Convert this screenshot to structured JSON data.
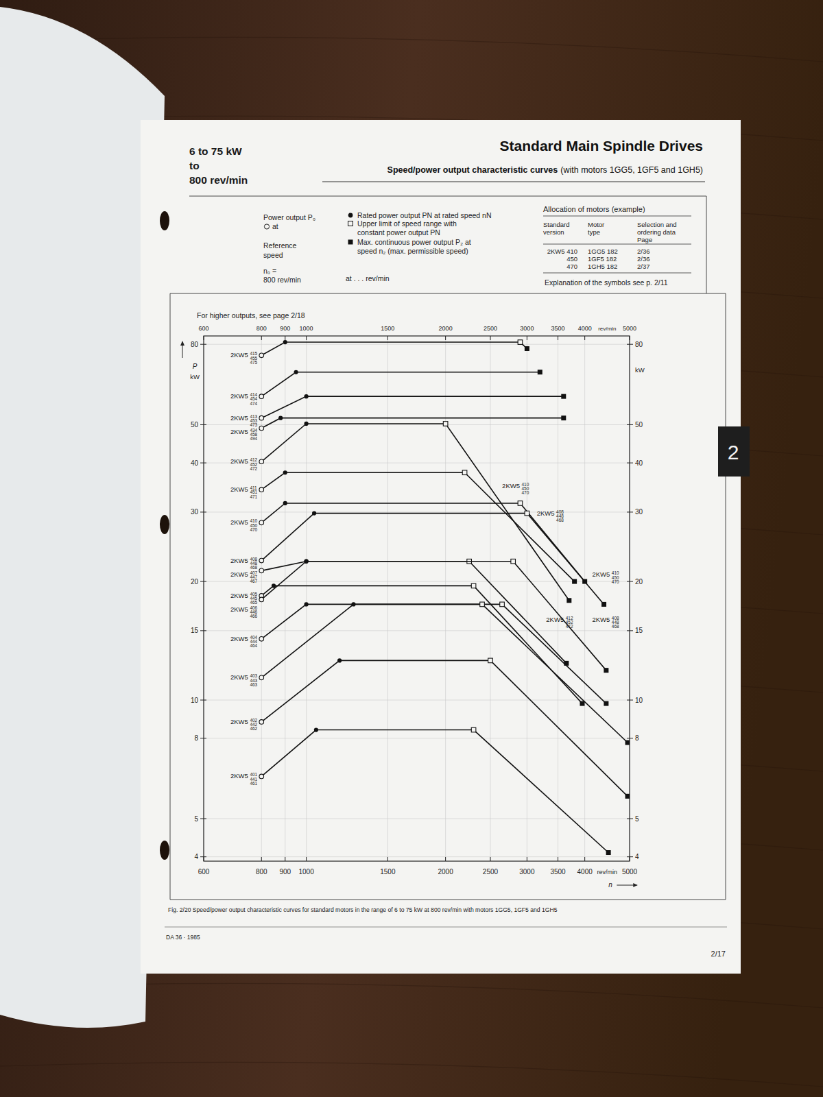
{
  "page": {
    "header_left": [
      "6 to 75 kW",
      "to",
      "800 rev/min"
    ],
    "header_title": "Standard Main Spindle Drives",
    "header_subtitle": "Speed/power output characteristic curves",
    "header_subtitle_note": "(with motors 1GG5, 1GF5 and 1GH5)",
    "legend": {
      "p0": [
        "Power output P₀",
        "at"
      ],
      "reference": [
        "Reference",
        "speed"
      ],
      "n0": [
        "n₀ =",
        "800 rev/min"
      ],
      "items": [
        [
          "Rated power output PN at rated speed nN"
        ],
        [
          "Upper limit of speed range with",
          "constant power output PN"
        ],
        [
          "Max. continuous power output P₂ at",
          "speed n₂ (max. permissible speed)"
        ]
      ],
      "at": "at . . . rev/min"
    },
    "allocation": {
      "title": "Allocation of motors (example)",
      "columns": [
        [
          "Standard",
          "version"
        ],
        [
          "Motor",
          "type"
        ],
        [
          "Selection and",
          "ordering data",
          "Page"
        ]
      ],
      "rows": [
        [
          "2KW5 410",
          "1GG5 182",
          "2/36"
        ],
        [
          "450",
          "1GF5 182",
          "2/36"
        ],
        [
          "470",
          "1GH5 182",
          "2/37"
        ]
      ],
      "note": "Explanation of the symbols see p. 2/11"
    },
    "caption": "Fig. 2/20  Speed/power output characteristic curves for standard motors in the range of 6 to 75 kW at 800 rev/min with motors 1GG5, 1GF5 and 1GH5",
    "footer_left": "DA 36 · 1985",
    "page_number": "2/17",
    "tab": "2"
  },
  "chart_data": {
    "type": "line",
    "title": "For higher outputs, see page 2/18",
    "x_label": "rev/min",
    "x_symbol": "n",
    "y_label": "kW",
    "y_symbol": "P",
    "log": true,
    "grid": true,
    "color": "#111111",
    "line_style": "solid",
    "xlim": [
      600,
      5000
    ],
    "xticks": [
      600,
      800,
      900,
      1000,
      1500,
      2000,
      2500,
      3000,
      3500,
      4000,
      5000
    ],
    "ylim": [
      3.9,
      84
    ],
    "yticks": [
      4,
      5,
      8,
      10,
      15,
      20,
      30,
      40,
      50,
      80
    ],
    "series": [
      {
        "name": "2KW5 415 455 475",
        "x": [
          800,
          900,
          2900,
          3000
        ],
        "values": [
          75,
          81,
          81,
          78
        ]
      },
      {
        "name": "2KW5 414 454 474",
        "x": [
          800,
          950,
          3200
        ],
        "values": [
          59,
          68,
          68
        ]
      },
      {
        "name": "2KW5 413 453 473",
        "x": [
          800,
          1000,
          3600
        ],
        "values": [
          52,
          59,
          59
        ]
      },
      {
        "name": "2KW5 434 458 494",
        "x": [
          800,
          880,
          3600
        ],
        "values": [
          49,
          52,
          52
        ]
      },
      {
        "name": "2KW5 412 452 472",
        "x": [
          800,
          1000,
          2000,
          3700
        ],
        "values": [
          40.3,
          50.3,
          50.3,
          17.9
        ]
      },
      {
        "name": "2KW5 411 451 471",
        "x": [
          800,
          900,
          2200,
          3800
        ],
        "values": [
          34.2,
          37.8,
          37.8,
          20
        ]
      },
      {
        "name": "2KW5 410 450 470",
        "x": [
          800,
          900,
          2900,
          4000
        ],
        "values": [
          28.2,
          31.6,
          31.6,
          20
        ]
      },
      {
        "name": "2KW5 408 448 468",
        "x": [
          800,
          1040,
          3000,
          4400
        ],
        "values": [
          22.6,
          29.8,
          29.8,
          17.5
        ]
      },
      {
        "name": "2KW5 407 447 467",
        "x": [
          800,
          1000,
          2250,
          3650
        ],
        "values": [
          21.3,
          22.5,
          22.5,
          12.4
        ]
      },
      {
        "name": "2KW5 405 445 465",
        "x": [
          800,
          850,
          2300,
          3950
        ],
        "values": [
          18.4,
          19.5,
          19.5,
          9.8
        ]
      },
      {
        "name": "2KW5 406 446 466",
        "x": [
          800,
          1000,
          2800,
          4450
        ],
        "values": [
          18,
          22.5,
          22.5,
          11.9
        ]
      },
      {
        "name": "2KW5 404 444 464",
        "x": [
          800,
          1000,
          2650,
          4450
        ],
        "values": [
          14.3,
          17.5,
          17.5,
          9.8
        ]
      },
      {
        "name": "2KW5 403 443 463",
        "x": [
          800,
          1265,
          2400,
          4950
        ],
        "values": [
          11.4,
          17.5,
          17.5,
          7.8
        ]
      },
      {
        "name": "2KW5 402 442 462",
        "x": [
          800,
          1180,
          2500,
          4950
        ],
        "values": [
          8.8,
          12.6,
          12.6,
          5.7
        ]
      },
      {
        "name": "2KW5 401 441 461",
        "x": [
          800,
          1050,
          2300,
          4500
        ],
        "values": [
          6.4,
          8.4,
          8.4,
          4.1
        ]
      }
    ],
    "annotations": [
      {
        "text": "2KW5 410 450 470",
        "x": 2650,
        "y": 35
      },
      {
        "text": "2KW5 408 448 468",
        "x": 3150,
        "y": 29.8
      },
      {
        "text": "2KW5 410 450 470",
        "x": 4150,
        "y": 20.8
      },
      {
        "text": "2KW5 412 452 472",
        "x": 3300,
        "y": 16
      },
      {
        "text": "2KW5 408 448 468",
        "x": 4150,
        "y": 16
      }
    ]
  }
}
